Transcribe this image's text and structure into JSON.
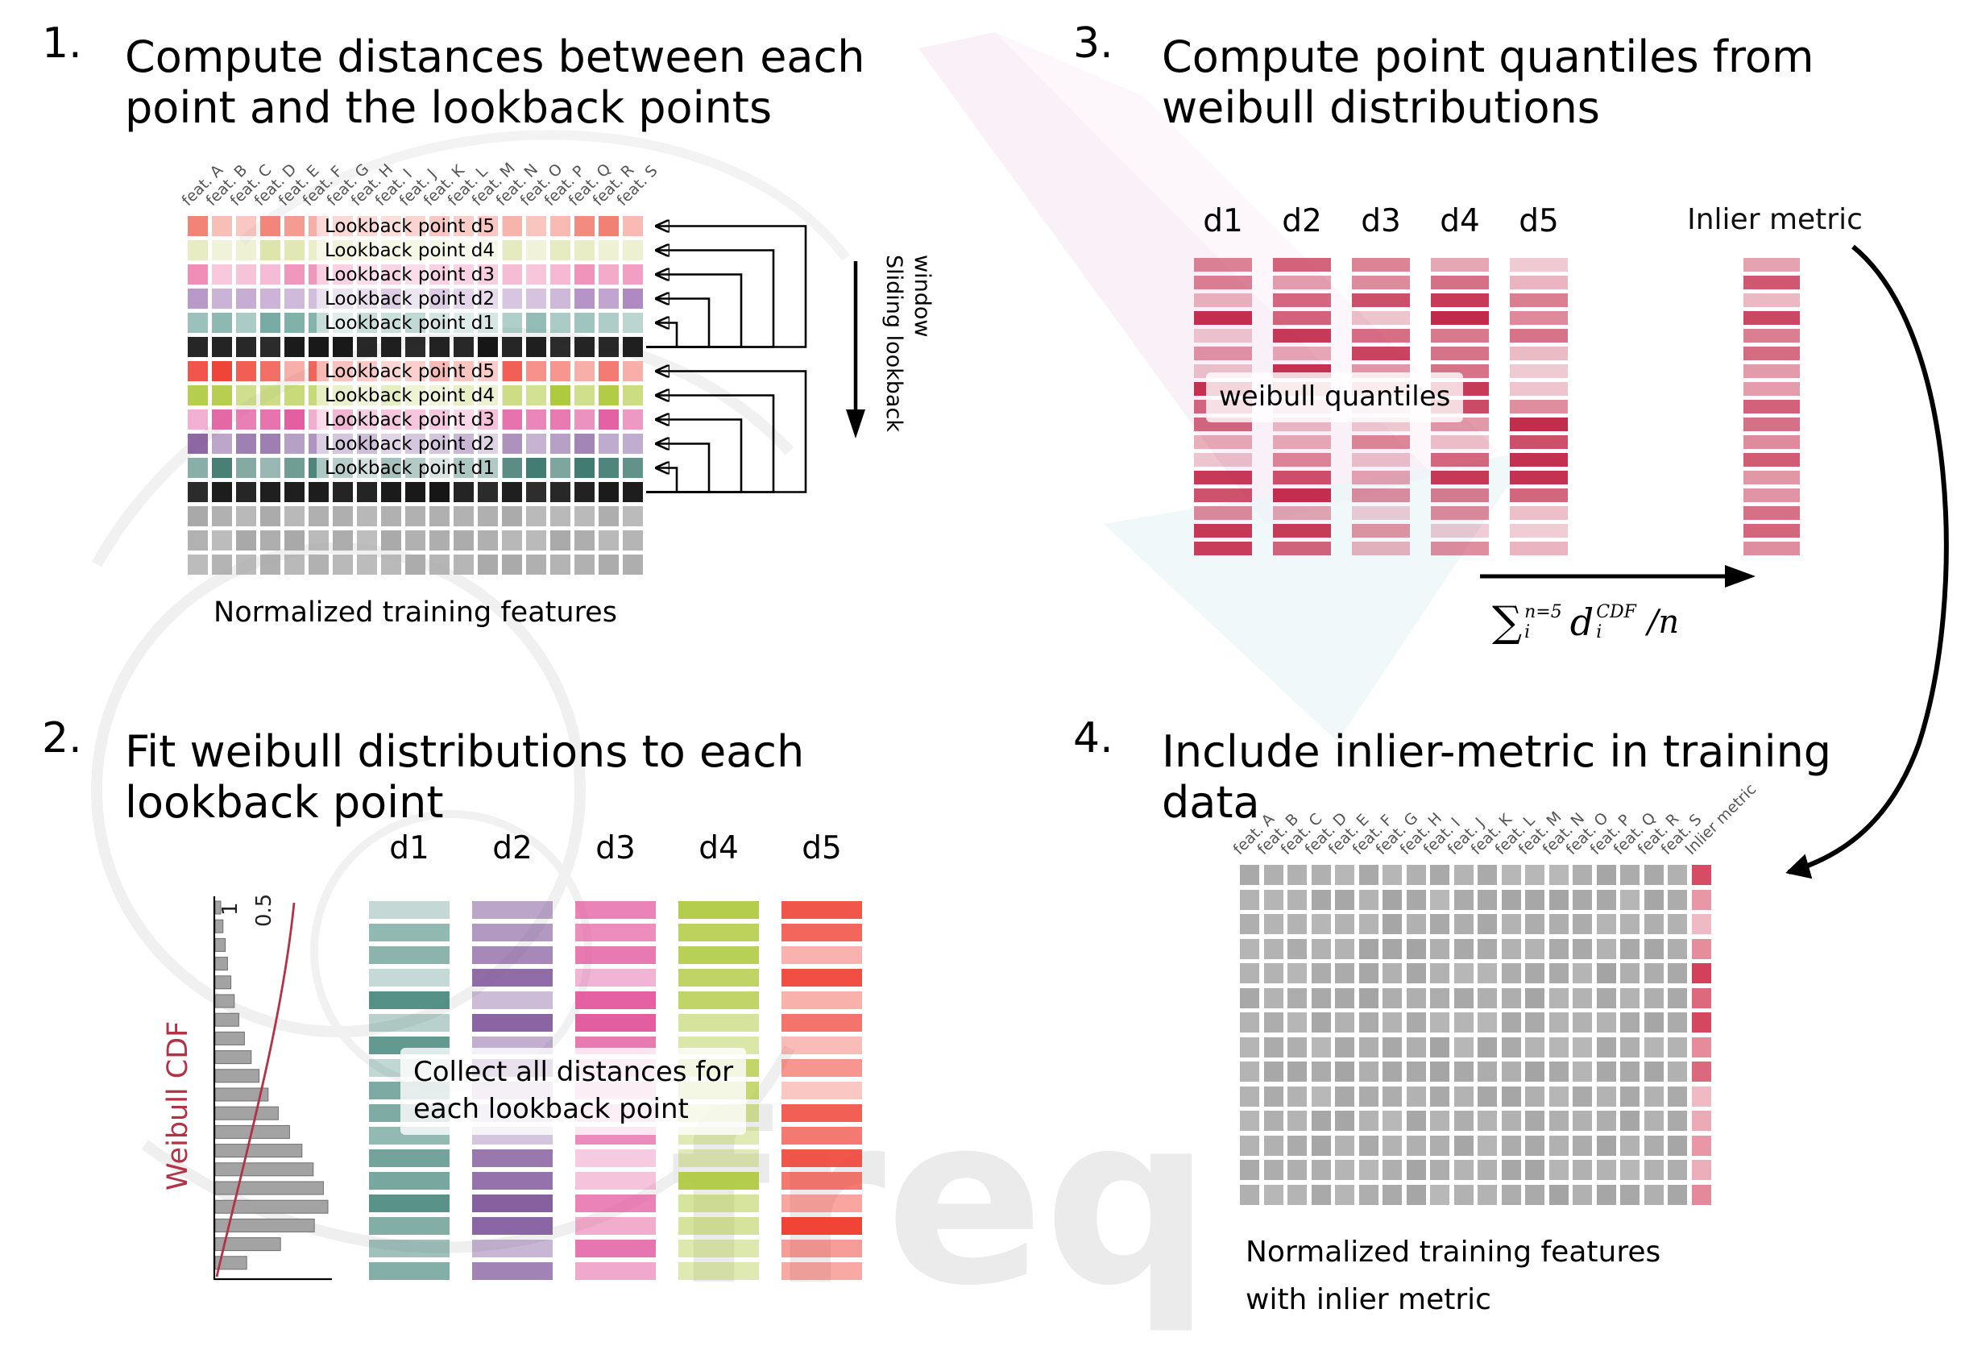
{
  "watermark": {
    "text": "freq"
  },
  "colors": {
    "black_row": "#161616",
    "gray_row": "#a9a9a9",
    "hist_bar": "#a3a3a3",
    "cdf_curve": "#b23246",
    "quantile_red": "#c22a4a",
    "inlier_red": "#c22a4a",
    "p4_gray": "#a4a4a4",
    "p4_inlier": "#d23a55"
  },
  "panel1": {
    "number": "1.",
    "title_lines": [
      "Compute distances between each",
      "point and the lookback points"
    ],
    "feature_labels": [
      "feat. A",
      "feat. B",
      "feat. C",
      "feat. D",
      "feat. E",
      "feat. F",
      "feat. G",
      "feat. H",
      "feat. I",
      "feat. J",
      "feat. K",
      "feat. L",
      "feat. M",
      "feat. N",
      "feat. O",
      "feat. P",
      "feat. Q",
      "feat. R",
      "feat. S"
    ],
    "columns": 19,
    "groups": [
      {
        "rows": [
          {
            "label": "Lookback point d5",
            "color": "#f28073"
          },
          {
            "label": "Lookback point d4",
            "color": "#dde4a8"
          },
          {
            "label": "Lookback point d3",
            "color": "#ef87b4"
          },
          {
            "label": "Lookback point d2",
            "color": "#a87fbc"
          },
          {
            "label": "Lookback point d1",
            "color": "#69a39a"
          }
        ]
      },
      {
        "rows": [
          {
            "label": "Lookback point d5",
            "color": "#ef4337"
          },
          {
            "label": "Lookback point d4",
            "color": "#afc93e"
          },
          {
            "label": "Lookback point d3",
            "color": "#e2559c"
          },
          {
            "label": "Lookback point d2",
            "color": "#7a4f96"
          },
          {
            "label": "Lookback point d1",
            "color": "#2f6e63"
          }
        ]
      }
    ],
    "gray_rows": 3,
    "sliding_label_lines": [
      "Sliding lookback",
      "window"
    ],
    "caption": "Normalized training features"
  },
  "panel2": {
    "number": "2.",
    "title_lines": [
      "Fit weibull distributions to each",
      "lookback point"
    ],
    "plot": {
      "ylabel": "Weibull CDF",
      "ticks": [
        "1",
        "0.5"
      ],
      "hist": [
        0.05,
        0.07,
        0.09,
        0.11,
        0.14,
        0.17,
        0.21,
        0.26,
        0.32,
        0.39,
        0.47,
        0.56,
        0.66,
        0.77,
        0.87,
        0.96,
        1.0,
        0.88,
        0.58,
        0.28
      ]
    },
    "stacks": [
      {
        "label": "d1",
        "color": "#3f8277"
      },
      {
        "label": "d2",
        "color": "#7a4f96"
      },
      {
        "label": "d3",
        "color": "#e2559c"
      },
      {
        "label": "d4",
        "color": "#afc93e"
      },
      {
        "label": "d5",
        "color": "#f04437"
      }
    ],
    "bars_per_stack": 17,
    "overlay_lines": [
      "Collect all distances for",
      "each lookback point"
    ]
  },
  "panel3": {
    "number": "3.",
    "title_lines": [
      "Compute point quantiles from",
      "weibull distributions"
    ],
    "column_labels": [
      "d1",
      "d2",
      "d3",
      "d4",
      "d5"
    ],
    "bars_per_stack": 17,
    "overlay_text": "weibull quantiles",
    "inlier_label": "Inlier metric",
    "formula": {
      "sigma": "∑",
      "sigma_sup": "n=5",
      "sigma_sub": "i",
      "d": "d",
      "d_sup": "CDF",
      "d_sub": "i",
      "tail": "/n"
    }
  },
  "panel4": {
    "number": "4.",
    "title_lines": [
      "Include inlier-metric in training",
      "data"
    ],
    "feature_labels": [
      "feat. A",
      "feat. B",
      "feat. C",
      "feat. D",
      "feat. E",
      "feat. F",
      "feat. G",
      "feat. H",
      "feat. I",
      "feat. J",
      "feat. K",
      "feat. L",
      "feat. M",
      "feat. N",
      "feat. O",
      "feat. P",
      "feat. Q",
      "feat. R",
      "feat. S",
      "Inlier metric"
    ],
    "columns": 20,
    "rows": 14,
    "caption_lines": [
      "Normalized training features",
      "with inlier metric"
    ]
  }
}
